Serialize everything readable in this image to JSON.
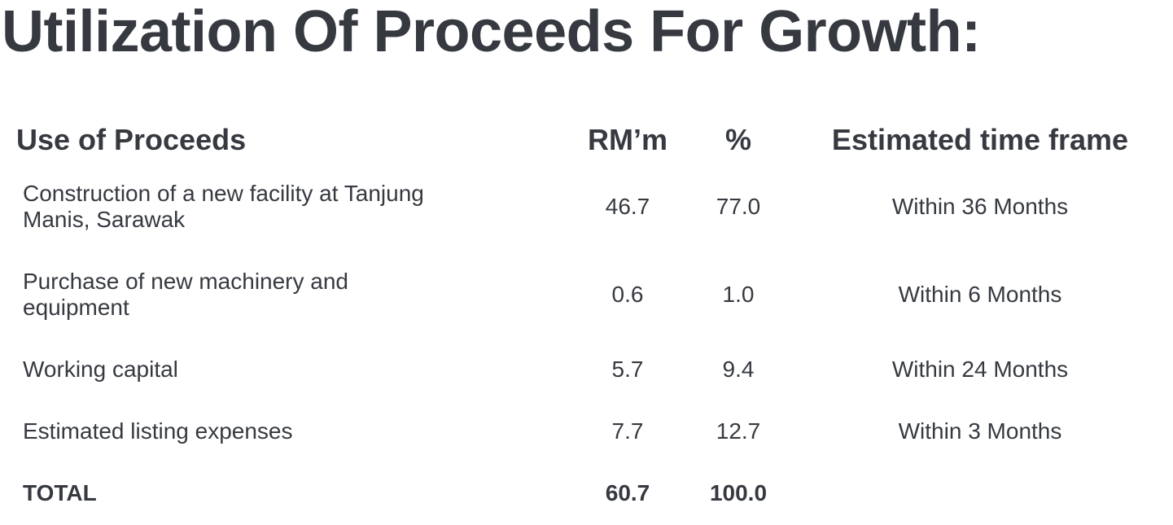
{
  "title": "Utilization Of Proceeds For Growth:",
  "table": {
    "headers": [
      "Use of Proceeds",
      "RM’m",
      "%",
      "Estimated time frame"
    ],
    "rows": [
      {
        "use": [
          "Construction of a new facility at Tanjung",
          "Manis, Sarawak"
        ],
        "rm": "46.7",
        "pct": "77.0",
        "time": "Within 36 Months"
      },
      {
        "use": [
          "Purchase of new machinery and",
          "equipment"
        ],
        "rm": "0.6",
        "pct": "1.0",
        "time": "Within 6 Months"
      },
      {
        "use": [
          "Working capital"
        ],
        "rm": "5.7",
        "pct": "9.4",
        "time": "Within 24 Months"
      },
      {
        "use": [
          "Estimated listing expenses"
        ],
        "rm": "7.7",
        "pct": "12.7",
        "time": "Within 3 Months"
      }
    ],
    "total": {
      "label": "TOTAL",
      "rm": "60.7",
      "pct": "100.0"
    }
  }
}
